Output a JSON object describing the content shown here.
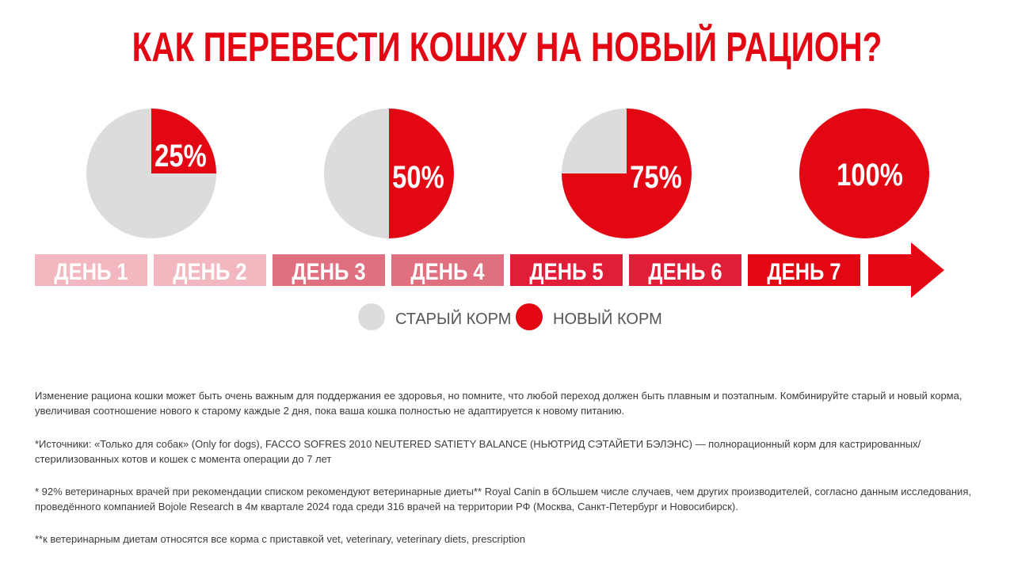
{
  "title": "КАК ПЕРЕВЕСТИ КОШКУ НА НОВЫЙ РАЦИОН?",
  "colors": {
    "accent": "#e30613",
    "old_feed": "#dcdcdc",
    "day_1_2": "#f2b7bf",
    "day_3_4": "#e0707f",
    "day_5_6": "#e11e38",
    "day_7": "#e30613"
  },
  "chart_data": [
    {
      "type": "pie",
      "title": "",
      "slices": [
        {
          "label": "СТАРЫЙ КОРМ",
          "value": 75
        },
        {
          "label": "НОВЫЙ КОРМ",
          "value": 25
        }
      ],
      "data_label": "25%"
    },
    {
      "type": "pie",
      "title": "",
      "slices": [
        {
          "label": "СТАРЫЙ КОРМ",
          "value": 50
        },
        {
          "label": "НОВЫЙ КОРМ",
          "value": 50
        }
      ],
      "data_label": "50%"
    },
    {
      "type": "pie",
      "title": "",
      "slices": [
        {
          "label": "СТАРЫЙ КОРМ",
          "value": 25
        },
        {
          "label": "НОВЫЙ КОРМ",
          "value": 75
        }
      ],
      "data_label": "75%"
    },
    {
      "type": "pie",
      "title": "",
      "slices": [
        {
          "label": "СТАРЫЙ КОРМ",
          "value": 0
        },
        {
          "label": "НОВЫЙ КОРМ",
          "value": 100
        }
      ],
      "data_label": "100%"
    }
  ],
  "timeline": {
    "days": [
      "ДЕНЬ 1",
      "ДЕНЬ 2",
      "ДЕНЬ 3",
      "ДЕНЬ 4",
      "ДЕНЬ 5",
      "ДЕНЬ 6",
      "ДЕНЬ 7"
    ]
  },
  "legend": {
    "old": "СТАРЫЙ КОРМ",
    "new": "НОВЫЙ КОРМ"
  },
  "notes": [
    "Изменение рациона кошки может быть очень важным для поддержания ее здоровья, но помните, что любой переход должен быть плавным и поэтапным. Комбинируйте старый и новый корма, увеличивая соотношение нового к старому каждые 2 дня, пока ваша кошка полностью не адаптируется к новому питанию.",
    "*Источники: «Только для собак» (Only for dogs), FACCO SOFRES 2010 NEUTERED SATIETY BALANCE (НЬЮТРИД СЭТАЙЕТИ БЭЛЭНС) — полнорационный корм для кастрированных/стерилизованных котов и кошек с момента операции до 7 лет",
    "* 92% ветеринарных врачей при рекомендации списком рекомендуют ветеринарные диеты** Royal Canin в бОльшем числе случаев, чем других производителей, согласно данным исследования, проведённого компанией Bojole Research в 4м квартале 2024 года среди 316 врачей на территории РФ (Москва, Санкт-Петербург и Новосибирск).",
    "**к ветеринарным диетам относятся все корма с приставкой vet, veterinary, veterinary diets, prescription"
  ]
}
